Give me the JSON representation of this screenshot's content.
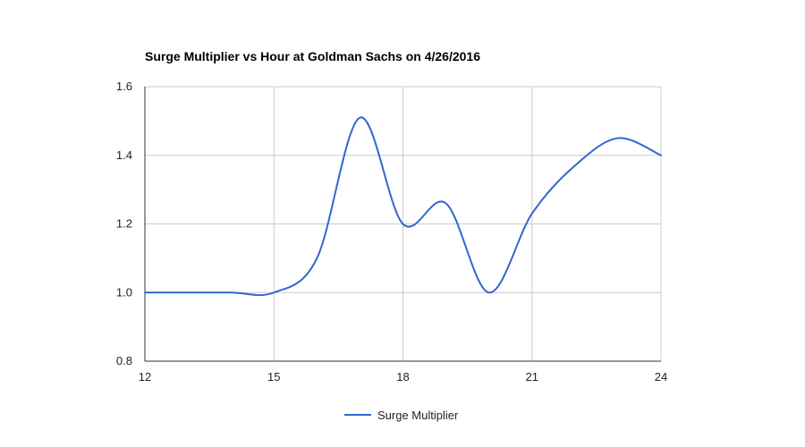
{
  "chart_data": {
    "type": "line",
    "title": "Surge Multiplier vs Hour at Goldman Sachs on 4/26/2016",
    "xlabel": "",
    "ylabel": "",
    "xlim": [
      12,
      24
    ],
    "ylim": [
      0.8,
      1.6
    ],
    "x_ticks": [
      12,
      15,
      18,
      21,
      24
    ],
    "x_tick_labels": [
      "12",
      "15",
      "18",
      "21",
      "24"
    ],
    "y_ticks": [
      0.8,
      1.0,
      1.2,
      1.4,
      1.6
    ],
    "y_tick_labels": [
      "0.8",
      "1.0",
      "1.2",
      "1.4",
      "1.6"
    ],
    "grid": true,
    "legend_position": "bottom",
    "series": [
      {
        "name": "Surge Multiplier",
        "color": "#3366cc",
        "x": [
          12,
          13,
          14,
          15,
          16,
          17,
          18,
          19,
          20,
          21,
          22,
          23,
          24
        ],
        "y": [
          1.0,
          1.0,
          1.0,
          1.0,
          1.1,
          1.51,
          1.2,
          1.26,
          1.0,
          1.23,
          1.37,
          1.45,
          1.4
        ]
      }
    ]
  }
}
